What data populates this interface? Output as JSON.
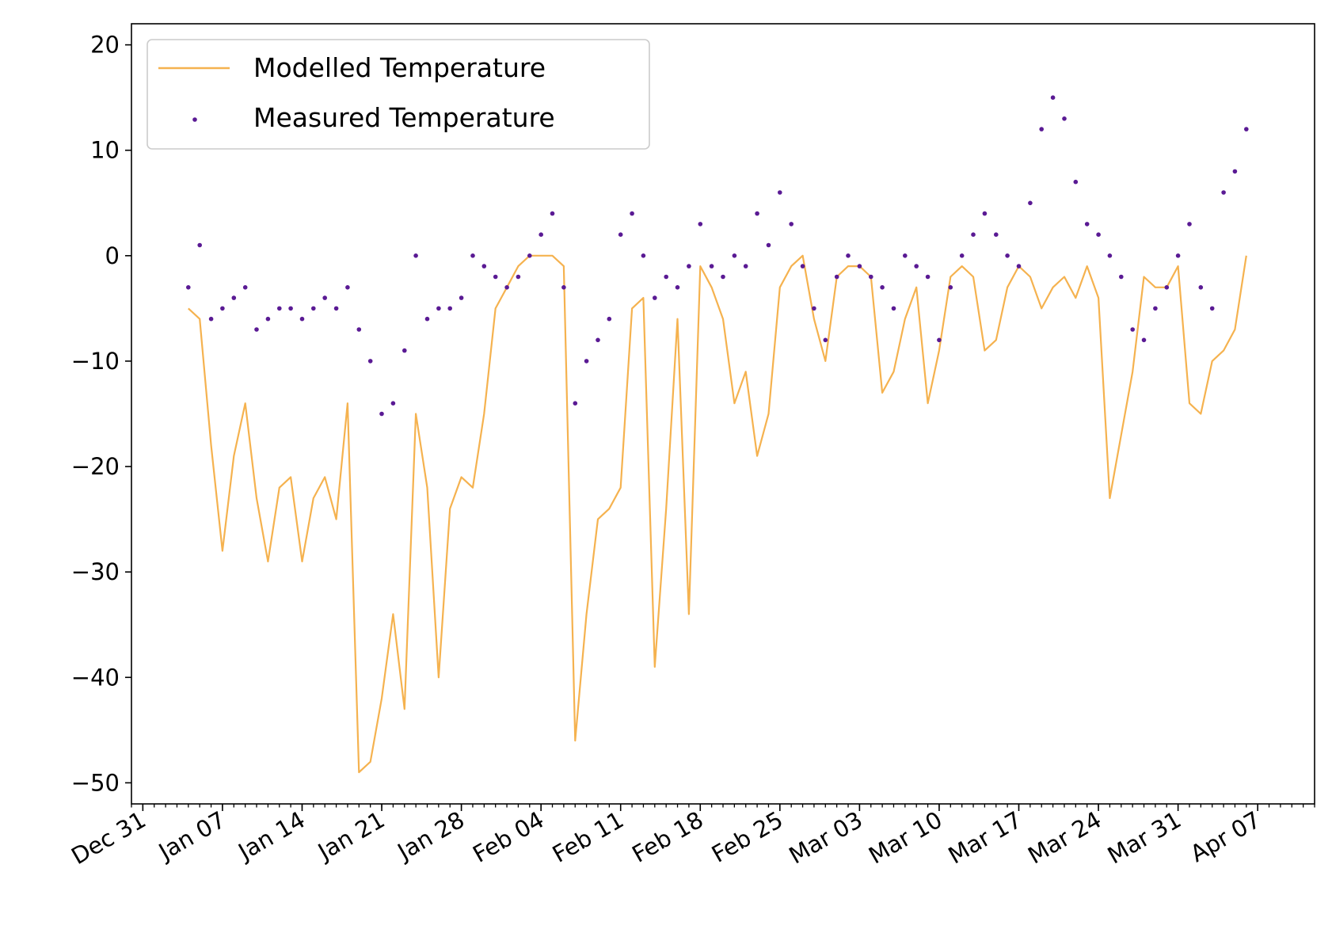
{
  "chart_data": {
    "type": "line",
    "title": "",
    "xlabel": "",
    "ylabel": "",
    "xlim": [
      "2023-12-30",
      "2024-04-12"
    ],
    "ylim": [
      -52,
      22
    ],
    "y_ticks": [
      20,
      10,
      0,
      -10,
      -20,
      -30,
      -40,
      -50
    ],
    "y_tick_labels": [
      "20",
      "10",
      "0",
      "−10",
      "−20",
      "−30",
      "−40",
      "−50"
    ],
    "x_ticks": [
      "2023-12-31",
      "2024-01-07",
      "2024-01-14",
      "2024-01-21",
      "2024-01-28",
      "2024-02-04",
      "2024-02-11",
      "2024-02-18",
      "2024-02-25",
      "2024-03-03",
      "2024-03-10",
      "2024-03-17",
      "2024-03-24",
      "2024-03-31",
      "2024-04-07"
    ],
    "x_tick_labels": [
      "Dec 31",
      "Jan 07",
      "Jan 14",
      "Jan 21",
      "Jan 28",
      "Feb 04",
      "Feb 11",
      "Feb 18",
      "Feb 25",
      "Mar 03",
      "Mar 10",
      "Mar 17",
      "Mar 24",
      "Mar 31",
      "Apr 07"
    ],
    "minor_ticks": "daily",
    "grid": false,
    "legend": {
      "position": "top-left"
    },
    "series": [
      {
        "name": "Modelled Temperature",
        "kind": "line",
        "color": "#f5b24f",
        "x": [
          "2024-01-04",
          "2024-01-05",
          "2024-01-06",
          "2024-01-07",
          "2024-01-08",
          "2024-01-09",
          "2024-01-10",
          "2024-01-11",
          "2024-01-12",
          "2024-01-13",
          "2024-01-14",
          "2024-01-15",
          "2024-01-16",
          "2024-01-17",
          "2024-01-18",
          "2024-01-19",
          "2024-01-20",
          "2024-01-21",
          "2024-01-22",
          "2024-01-23",
          "2024-01-24",
          "2024-01-25",
          "2024-01-26",
          "2024-01-27",
          "2024-01-28",
          "2024-01-29",
          "2024-01-30",
          "2024-01-31",
          "2024-02-01",
          "2024-02-02",
          "2024-02-03",
          "2024-02-04",
          "2024-02-05",
          "2024-02-06",
          "2024-02-07",
          "2024-02-08",
          "2024-02-09",
          "2024-02-10",
          "2024-02-11",
          "2024-02-12",
          "2024-02-13",
          "2024-02-14",
          "2024-02-15",
          "2024-02-16",
          "2024-02-17",
          "2024-02-18",
          "2024-02-19",
          "2024-02-20",
          "2024-02-21",
          "2024-02-22",
          "2024-02-23",
          "2024-02-24",
          "2024-02-25",
          "2024-02-26",
          "2024-02-27",
          "2024-02-28",
          "2024-02-29",
          "2024-03-01",
          "2024-03-02",
          "2024-03-03",
          "2024-03-04",
          "2024-03-05",
          "2024-03-06",
          "2024-03-07",
          "2024-03-08",
          "2024-03-09",
          "2024-03-10",
          "2024-03-11",
          "2024-03-12",
          "2024-03-13",
          "2024-03-14",
          "2024-03-15",
          "2024-03-16",
          "2024-03-17",
          "2024-03-18",
          "2024-03-19",
          "2024-03-20",
          "2024-03-21",
          "2024-03-22",
          "2024-03-23",
          "2024-03-24",
          "2024-03-25",
          "2024-03-26",
          "2024-03-27",
          "2024-03-28",
          "2024-03-29",
          "2024-03-30",
          "2024-03-31",
          "2024-04-01",
          "2024-04-02",
          "2024-04-03",
          "2024-04-04",
          "2024-04-05",
          "2024-04-06"
        ],
        "values": [
          -5,
          -6,
          -18,
          -28,
          -19,
          -14,
          -23,
          -29,
          -22,
          -21,
          -29,
          -23,
          -21,
          -25,
          -14,
          -49,
          -48,
          -42,
          -34,
          -43,
          -15,
          -22,
          -40,
          -24,
          -21,
          -22,
          -15,
          -5,
          -3,
          -1,
          0,
          0,
          0,
          -1,
          -46,
          -34,
          -25,
          -24,
          -22,
          -5,
          -4,
          -39,
          -24,
          -6,
          -34,
          -1,
          -3,
          -6,
          -14,
          -11,
          -19,
          -15,
          -3,
          -1,
          0,
          -6,
          -10,
          -2,
          -1,
          -1,
          -2,
          -13,
          -11,
          -6,
          -3,
          -14,
          -9,
          -2,
          -1,
          -2,
          -9,
          -8,
          -3,
          -1,
          -2,
          -5,
          -3,
          -2,
          -4,
          -1,
          -4,
          -23,
          -17,
          -11,
          -2,
          -3,
          -3,
          -1,
          -14,
          -15,
          -10,
          -9,
          -7,
          0
        ]
      },
      {
        "name": "Measured Temperature",
        "kind": "scatter",
        "color": "#5a1a94",
        "x": [
          "2024-01-04",
          "2024-01-05",
          "2024-01-06",
          "2024-01-07",
          "2024-01-08",
          "2024-01-09",
          "2024-01-10",
          "2024-01-11",
          "2024-01-12",
          "2024-01-13",
          "2024-01-14",
          "2024-01-15",
          "2024-01-16",
          "2024-01-17",
          "2024-01-18",
          "2024-01-19",
          "2024-01-20",
          "2024-01-21",
          "2024-01-22",
          "2024-01-23",
          "2024-01-24",
          "2024-01-25",
          "2024-01-26",
          "2024-01-27",
          "2024-01-28",
          "2024-01-29",
          "2024-01-30",
          "2024-01-31",
          "2024-02-01",
          "2024-02-02",
          "2024-02-03",
          "2024-02-04",
          "2024-02-05",
          "2024-02-06",
          "2024-02-07",
          "2024-02-08",
          "2024-02-09",
          "2024-02-10",
          "2024-02-11",
          "2024-02-12",
          "2024-02-13",
          "2024-02-14",
          "2024-02-15",
          "2024-02-16",
          "2024-02-17",
          "2024-02-18",
          "2024-02-19",
          "2024-02-20",
          "2024-02-21",
          "2024-02-22",
          "2024-02-23",
          "2024-02-24",
          "2024-02-25",
          "2024-02-26",
          "2024-02-27",
          "2024-02-28",
          "2024-02-29",
          "2024-03-01",
          "2024-03-02",
          "2024-03-03",
          "2024-03-04",
          "2024-03-05",
          "2024-03-06",
          "2024-03-07",
          "2024-03-08",
          "2024-03-09",
          "2024-03-10",
          "2024-03-11",
          "2024-03-12",
          "2024-03-13",
          "2024-03-14",
          "2024-03-15",
          "2024-03-16",
          "2024-03-17",
          "2024-03-18",
          "2024-03-19",
          "2024-03-20",
          "2024-03-21",
          "2024-03-22",
          "2024-03-23",
          "2024-03-24",
          "2024-03-25",
          "2024-03-26",
          "2024-03-27",
          "2024-03-28",
          "2024-03-29",
          "2024-03-30",
          "2024-03-31",
          "2024-04-01",
          "2024-04-02",
          "2024-04-03",
          "2024-04-04",
          "2024-04-05",
          "2024-04-06"
        ],
        "values": [
          -3,
          1,
          -6,
          -5,
          -4,
          -3,
          -7,
          -6,
          -5,
          -5,
          -6,
          -5,
          -4,
          -5,
          -3,
          -7,
          -10,
          -15,
          -14,
          -9,
          0,
          -6,
          -5,
          -5,
          -4,
          0,
          -1,
          -2,
          -3,
          -2,
          0,
          2,
          4,
          -3,
          -14,
          -10,
          -8,
          -6,
          2,
          4,
          0,
          -4,
          -2,
          -3,
          -1,
          3,
          -1,
          -2,
          0,
          -1,
          4,
          1,
          6,
          3,
          -1,
          -5,
          -8,
          -2,
          0,
          -1,
          -2,
          -3,
          -5,
          0,
          -1,
          -2,
          -8,
          -3,
          0,
          2,
          4,
          2,
          0,
          -1,
          5,
          12,
          15,
          13,
          7,
          3,
          2,
          0,
          -2,
          -7,
          -8,
          -5,
          -3,
          0,
          3,
          -3,
          -5,
          6,
          8,
          12
        ]
      }
    ]
  }
}
